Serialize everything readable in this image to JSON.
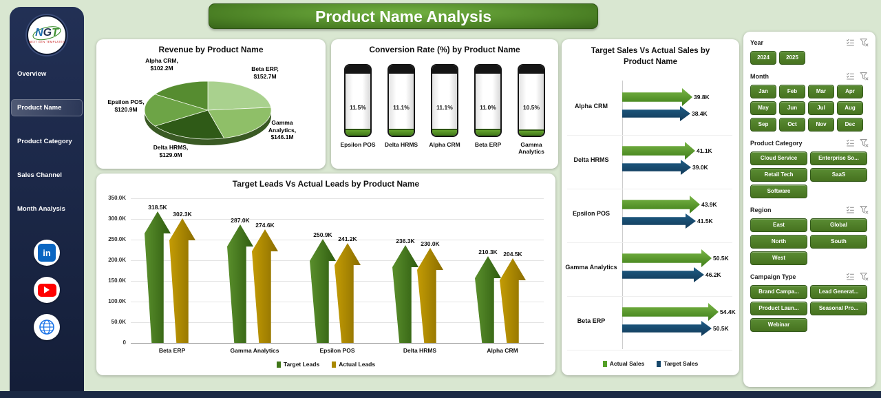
{
  "page": {
    "title": "Product Name Analysis",
    "colors": {
      "background": "#d9e7d1",
      "sidebar_navy": "#1b2944",
      "banner_green": "#4a7f24",
      "slicer_green": "#4e7d2a",
      "target_leads_green": "#3f7618",
      "actual_leads_gold": "#a98800",
      "actual_sales_green": "#55a028",
      "target_sales_navy": "#17486b"
    }
  },
  "sidebar": {
    "logo": {
      "text": "NGT",
      "subtext": "NEXT GEN TEMPLATES"
    },
    "items": [
      {
        "label": "Overview",
        "active": false
      },
      {
        "label": "Product Name",
        "active": true
      },
      {
        "label": "Product Category",
        "active": false
      },
      {
        "label": "Sales Channel",
        "active": false
      },
      {
        "label": "Month Analysis",
        "active": false
      }
    ],
    "social": [
      {
        "name": "linkedin",
        "glyph": "in"
      },
      {
        "name": "youtube"
      },
      {
        "name": "globe"
      }
    ]
  },
  "chart_data": [
    {
      "id": "revenue_pie",
      "type": "pie",
      "title": "Revenue by Product Name",
      "unit": "$M",
      "slices": [
        {
          "name": "Beta ERP",
          "value": 152.7,
          "label_lines": [
            "Beta ERP,",
            "$152.7M"
          ],
          "color": "#a9d18e"
        },
        {
          "name": "Gamma Analytics",
          "value": 146.1,
          "label_lines": [
            "Gamma",
            "Analytics,",
            "$146.1M"
          ],
          "color": "#8fbf68"
        },
        {
          "name": "Delta HRMS",
          "value": 129.0,
          "label_lines": [
            "Delta HRMS,",
            "$129.0M"
          ],
          "color": "#2f5a17"
        },
        {
          "name": "Epsilon POS",
          "value": 120.9,
          "label_lines": [
            "Epsilon POS,",
            "$120.9M"
          ],
          "color": "#6da446"
        },
        {
          "name": "Alpha CRM",
          "value": 102.2,
          "label_lines": [
            "Alpha CRM,",
            "$102.2M"
          ],
          "color": "#568c30"
        }
      ]
    },
    {
      "id": "conversion_gauges",
      "type": "bar",
      "title": "Conversion Rate (%) by Product Name",
      "categories": [
        "Epsilon POS",
        "Delta HRMS",
        "Alpha CRM",
        "Beta ERP",
        "Gamma Analytics"
      ],
      "values": [
        11.5,
        11.1,
        11.1,
        11.0,
        10.5
      ],
      "value_labels": [
        "11.5%",
        "11.1%",
        "11.1%",
        "11.0%",
        "10.5%"
      ],
      "ylim": [
        0,
        100
      ]
    },
    {
      "id": "leads_arrows",
      "type": "bar",
      "title": "Target Leads Vs Actual Leads by Product Name",
      "categories": [
        "Beta ERP",
        "Gamma Analytics",
        "Epsilon POS",
        "Delta HRMS",
        "Alpha CRM"
      ],
      "series": [
        {
          "name": "Target Leads",
          "color": "#3f7618",
          "values": [
            318500,
            287000,
            250900,
            236300,
            210300
          ],
          "labels": [
            "318.5K",
            "287.0K",
            "250.9K",
            "236.3K",
            "210.3K"
          ]
        },
        {
          "name": "Actual Leads",
          "color": "#a98800",
          "values": [
            302300,
            274600,
            241200,
            230000,
            204500
          ],
          "labels": [
            "302.3K",
            "274.6K",
            "241.2K",
            "230.0K",
            "204.5K"
          ]
        }
      ],
      "ylim": [
        0,
        350000
      ],
      "ytick_labels": [
        "0",
        "50.0K",
        "100.0K",
        "150.0K",
        "200.0K",
        "250.0K",
        "300.0K",
        "350.0K"
      ],
      "grid": true,
      "legend_position": "bottom"
    },
    {
      "id": "sales_arrows",
      "type": "bar",
      "orientation": "horizontal",
      "title": "Target Sales Vs Actual Sales by Product Name",
      "categories": [
        "Alpha CRM",
        "Delta HRMS",
        "Epsilon POS",
        "Gamma Analytics",
        "Beta ERP"
      ],
      "series": [
        {
          "name": "Actual Sales",
          "color": "#55a028",
          "values": [
            39800,
            41100,
            43900,
            50500,
            54400
          ],
          "labels": [
            "39.8K",
            "41.1K",
            "43.9K",
            "50.5K",
            "54.4K"
          ]
        },
        {
          "name": "Target Sales",
          "color": "#17486b",
          "values": [
            38400,
            39000,
            41500,
            46200,
            50500
          ],
          "labels": [
            "38.4K",
            "39.0K",
            "41.5K",
            "46.2K",
            "50.5K"
          ]
        }
      ],
      "xlim": [
        0,
        60000
      ],
      "legend_position": "bottom"
    }
  ],
  "filter_panel": {
    "header_icons": [
      "select-all-icon",
      "clear-filter-icon"
    ],
    "slicers": [
      {
        "title": "Year",
        "layout": "row",
        "options": [
          "2024",
          "2025"
        ]
      },
      {
        "title": "Month",
        "layout": "grid4",
        "options": [
          "Jan",
          "Feb",
          "Mar",
          "Apr",
          "May",
          "Jun",
          "Jul",
          "Aug",
          "Sep",
          "Oct",
          "Nov",
          "Dec"
        ]
      },
      {
        "title": "Product Category",
        "layout": "grid2",
        "options": [
          "Cloud Service",
          "Enterprise So...",
          "Retail Tech",
          "SaaS",
          "Software"
        ]
      },
      {
        "title": "Region",
        "layout": "grid2",
        "options": [
          "East",
          "Global",
          "North",
          "South",
          "West"
        ]
      },
      {
        "title": "Campaign Type",
        "layout": "grid2",
        "options": [
          "Brand Campa...",
          "Lead Generat...",
          "Product Laun...",
          "Seasonal Pro...",
          "Webinar"
        ]
      }
    ]
  }
}
